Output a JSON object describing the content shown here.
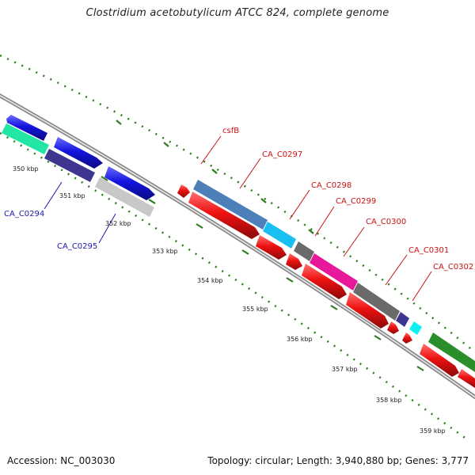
{
  "title": "Clostridium acetobutylicum ATCC 824, complete genome",
  "footer": {
    "accession_label": "Accession:",
    "accession": "NC_003030",
    "topology_label": "Topology:",
    "topology": "circular",
    "length_label": "Length:",
    "length": "3,940,880 bp",
    "genes_label": "Genes:",
    "genes": "3,777"
  },
  "ticks": [
    {
      "label": "350 kbp",
      "kbp": 350
    },
    {
      "label": "351 kbp",
      "kbp": 351
    },
    {
      "label": "352 kbp",
      "kbp": 352
    },
    {
      "label": "353 kbp",
      "kbp": 353
    },
    {
      "label": "354 kbp",
      "kbp": 354
    },
    {
      "label": "355 kbp",
      "kbp": 355
    },
    {
      "label": "356 kbp",
      "kbp": 356
    },
    {
      "label": "357 kbp",
      "kbp": 357
    },
    {
      "label": "358 kbp",
      "kbp": 358
    },
    {
      "label": "359 kbp",
      "kbp": 359
    }
  ],
  "gene_labels": [
    {
      "label": "CA_C0294",
      "color": "#1a1aa8"
    },
    {
      "label": "CA_C0295",
      "color": "#1a1aa8"
    },
    {
      "label": "csfB",
      "color": "#cc1111"
    },
    {
      "label": "CA_C0297",
      "color": "#cc1111"
    },
    {
      "label": "CA_C0298",
      "color": "#cc1111"
    },
    {
      "label": "CA_C0299",
      "color": "#cc1111"
    },
    {
      "label": "CA_C0300",
      "color": "#cc1111"
    },
    {
      "label": "CA_C0301",
      "color": "#cc1111"
    },
    {
      "label": "CA_C0302",
      "color": "#cc1111"
    }
  ],
  "colors": {
    "backbone": "#8c8c8c",
    "dots": "#2e7d1f",
    "cds_blue": "#1414e0",
    "cds_red": "#ee1111",
    "gene_teal": "#22e6a6",
    "gene_navy": "#3d3590",
    "gene_grey": "#c8c8c8",
    "gene_steel": "#4d7fb8",
    "gene_cyan": "#19bff0",
    "gene_dark": "#6a6a6a",
    "gene_magenta": "#e8189a",
    "gene_aqua": "#10f0f0",
    "gene_green": "#2a8f2a"
  }
}
